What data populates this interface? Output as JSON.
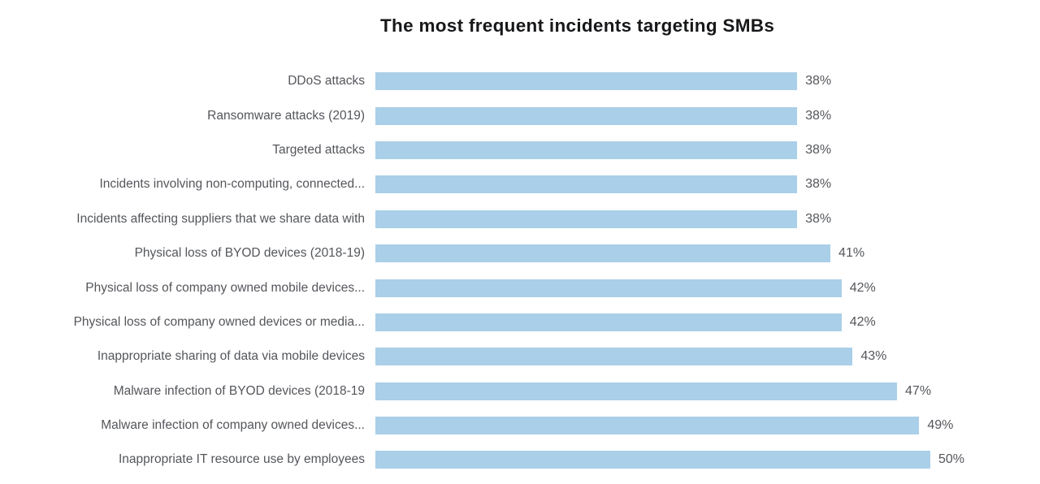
{
  "page": {
    "background": "#ffffff"
  },
  "chart_data": {
    "type": "bar",
    "orientation": "horizontal",
    "title": "The most frequent incidents targeting SMBs",
    "categories": [
      "DDoS attacks",
      "Ransomware attacks (2019)",
      "Targeted attacks",
      "Incidents involving non-computing, connected...",
      "Incidents affecting suppliers that we share data with",
      "Physical loss of BYOD devices (2018-19)",
      "Physical loss of company owned mobile devices...",
      "Physical loss of company owned devices or media...",
      "Inappropriate sharing of data via mobile devices",
      "Malware infection of BYOD devices (2018-19",
      "Malware infection of company owned devices...",
      "Inappropriate IT resource use by employees"
    ],
    "values": [
      38,
      38,
      38,
      38,
      38,
      41,
      42,
      42,
      43,
      47,
      49,
      50
    ],
    "value_suffix": "%",
    "xlim": [
      0,
      50
    ],
    "grid": false,
    "value_label_position": "end-of-bar",
    "bar_color": "#aacfe8",
    "label_color": "#54565b",
    "title_color": "#17181a"
  }
}
